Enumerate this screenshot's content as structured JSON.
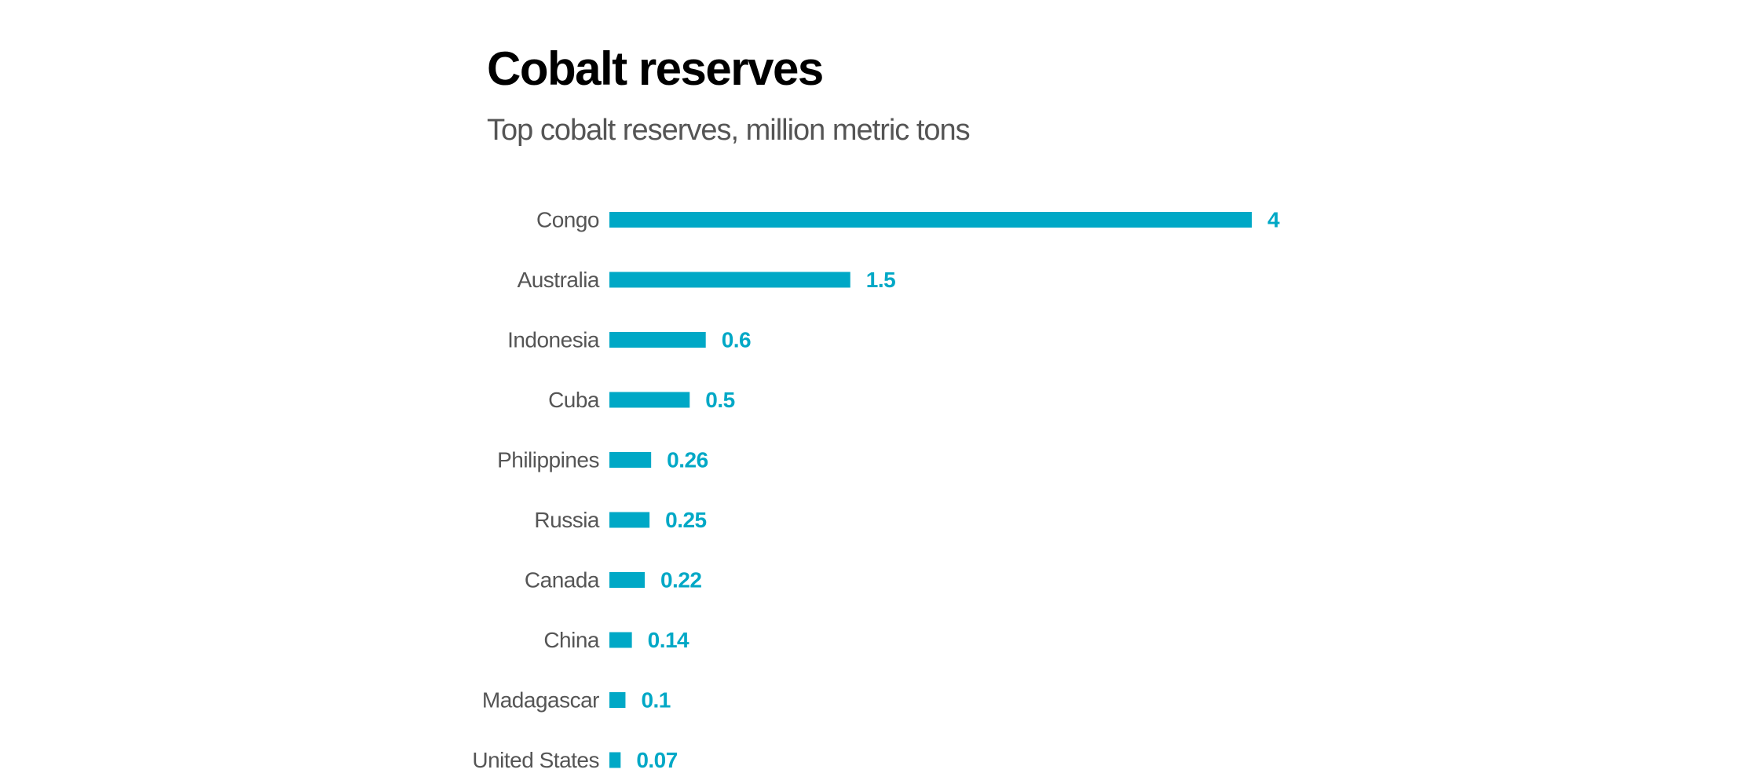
{
  "colors": {
    "bar": "#00a8c6",
    "value_label": "#00a8c6",
    "category_label": "#555555",
    "title": "#000000",
    "subtitle": "#555555"
  },
  "chart_data": {
    "type": "bar",
    "orientation": "horizontal",
    "title": "Cobalt reserves",
    "subtitle": "Top cobalt reserves, million metric tons",
    "xlabel": "",
    "ylabel": "",
    "grid": false,
    "legend": "none",
    "xlim": [
      0,
      4
    ],
    "categories": [
      "Congo",
      "Australia",
      "Indonesia",
      "Cuba",
      "Philippines",
      "Russia",
      "Canada",
      "China",
      "Madagascar",
      "United States"
    ],
    "values": [
      4,
      1.5,
      0.6,
      0.5,
      0.26,
      0.25,
      0.22,
      0.14,
      0.1,
      0.07
    ],
    "value_labels": [
      "4",
      "1.5",
      "0.6",
      "0.5",
      "0.26",
      "0.25",
      "0.22",
      "0.14",
      "0.1",
      "0.07"
    ]
  }
}
